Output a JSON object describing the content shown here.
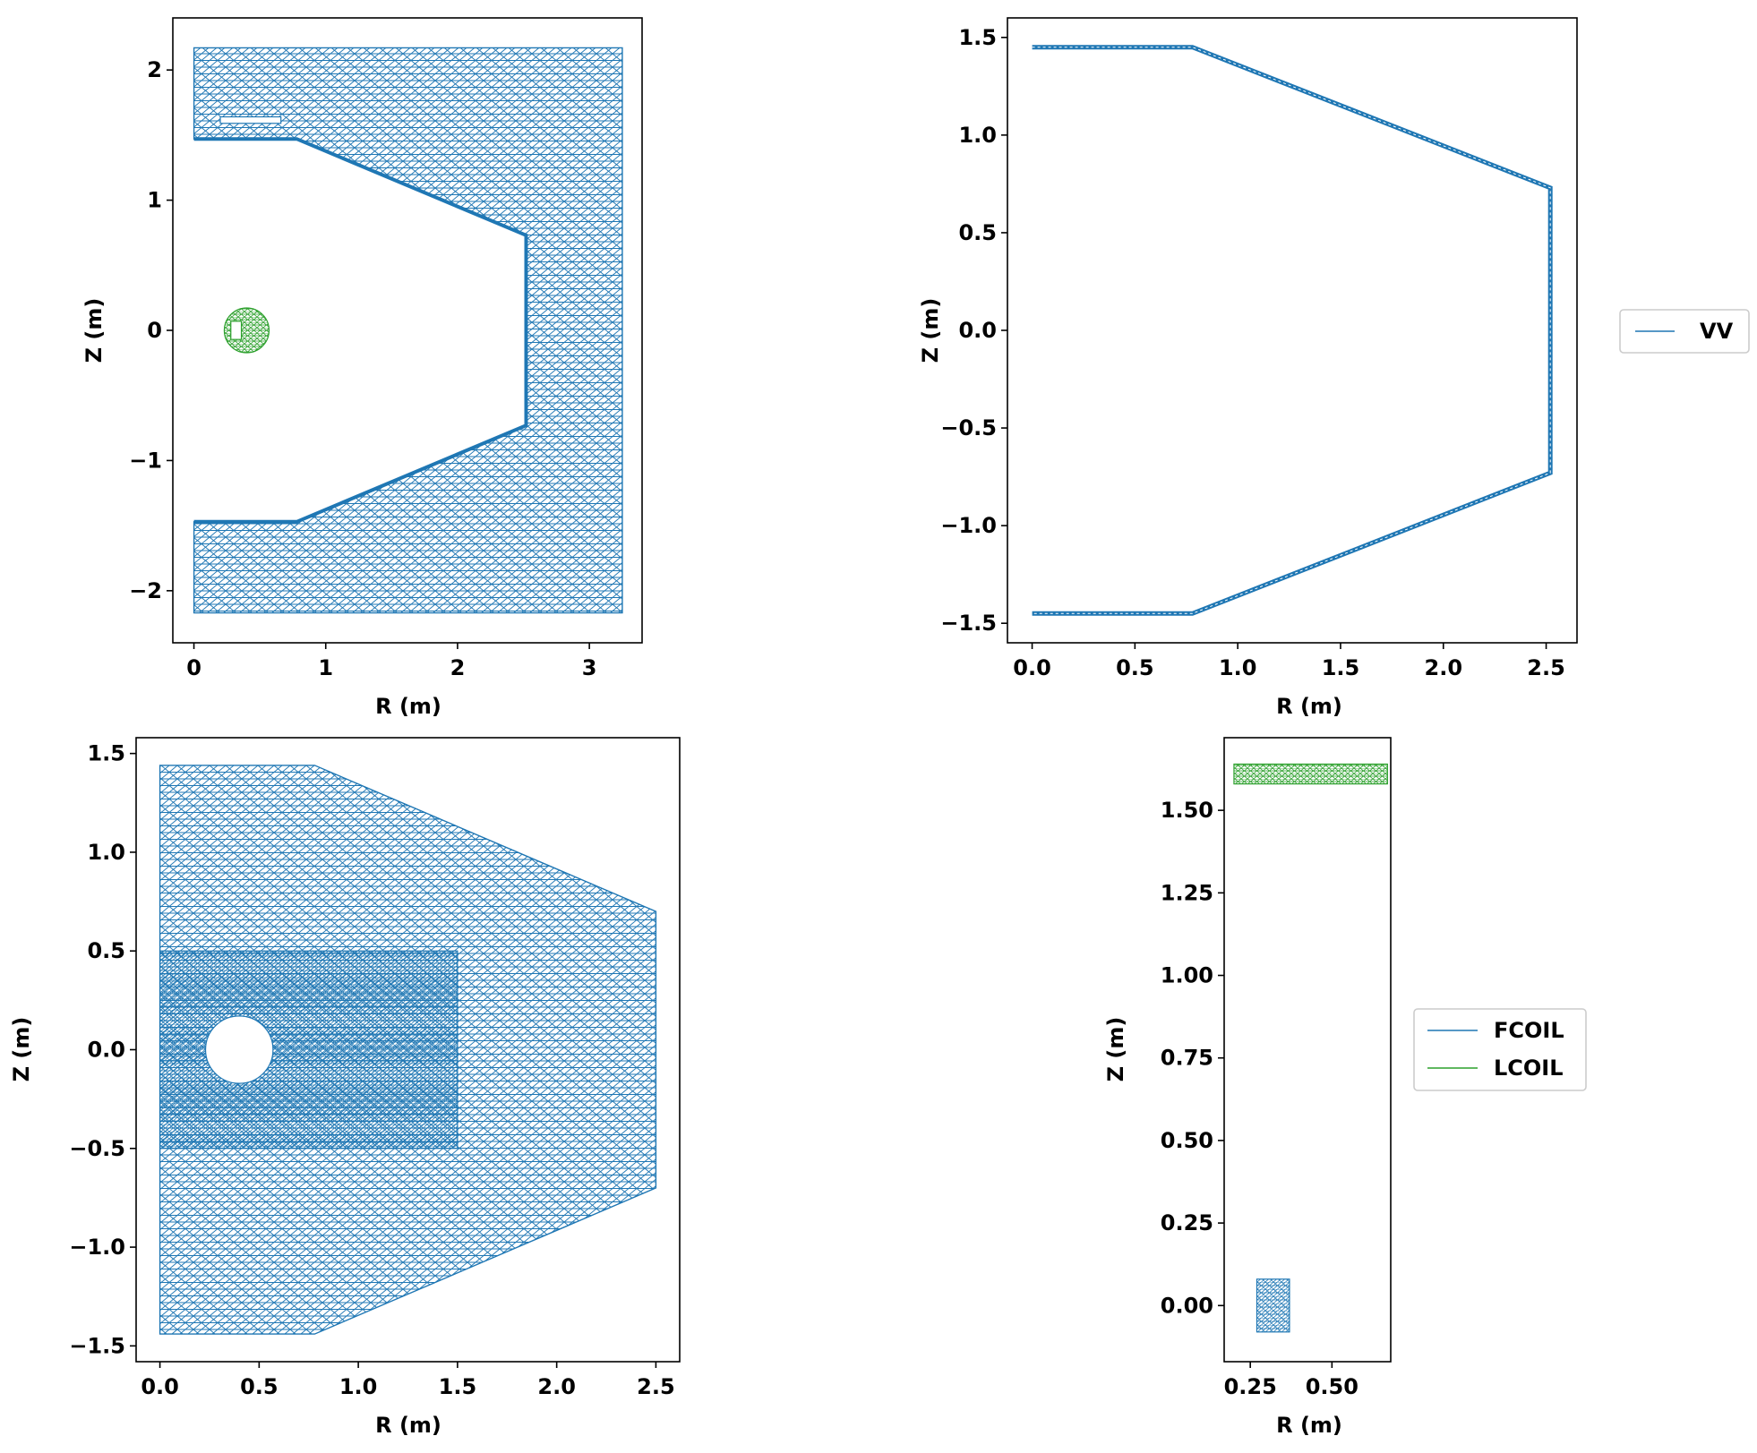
{
  "colors": {
    "blue": "#1f77b4",
    "green": "#2ca02c",
    "axes": "#000000",
    "legend_border": "#cccccc"
  },
  "chart_data": [
    {
      "type": "line",
      "subtype": "triangular-mesh",
      "panel": "top-left",
      "xlabel": "R (m)",
      "ylabel": "Z (m)",
      "xlim": [
        -0.16,
        3.4
      ],
      "ylim": [
        -2.4,
        2.4
      ],
      "xticks": [
        "0",
        "1",
        "2",
        "3"
      ],
      "xtick_values": [
        0,
        1,
        2,
        3
      ],
      "yticks": [
        "−2",
        "−1",
        "0",
        "1",
        "2"
      ],
      "ytick_values": [
        -2,
        -1,
        0,
        1,
        2
      ],
      "series": [
        {
          "color": "blue",
          "outline": [
            [
              0,
              2.17
            ],
            [
              3.25,
              2.17
            ],
            [
              3.25,
              -2.17
            ],
            [
              0,
              -2.17
            ],
            [
              0,
              -1.47
            ],
            [
              0.78,
              -1.47
            ],
            [
              2.52,
              -0.73
            ],
            [
              2.52,
              0.73
            ],
            [
              0.78,
              1.47
            ],
            [
              0,
              1.47
            ]
          ],
          "slot": [
            [
              0.2,
              1.59
            ],
            [
              0.66,
              1.64
            ]
          ]
        },
        {
          "color": "green",
          "circle_center": [
            0.4,
            0
          ],
          "circle_radius": 0.17,
          "inner_rect": [
            [
              0.28,
              -0.07
            ],
            [
              0.36,
              0.07
            ]
          ]
        }
      ],
      "grid": false
    },
    {
      "type": "line",
      "subtype": "triangular-mesh",
      "panel": "top-right",
      "xlabel": "R (m)",
      "ylabel": "Z (m)",
      "xlim": [
        -0.12,
        2.65
      ],
      "ylim": [
        -1.6,
        1.6
      ],
      "xticks": [
        "0.0",
        "0.5",
        "1.0",
        "1.5",
        "2.0",
        "2.5"
      ],
      "xtick_values": [
        0,
        0.5,
        1,
        1.5,
        2,
        2.5
      ],
      "yticks": [
        "−1.5",
        "−1.0",
        "−0.5",
        "0.0",
        "0.5",
        "1.0",
        "1.5"
      ],
      "ytick_values": [
        -1.5,
        -1,
        -0.5,
        0,
        0.5,
        1,
        1.5
      ],
      "series": [
        {
          "name": "VV",
          "color": "blue",
          "path": [
            [
              0,
              1.45
            ],
            [
              0.78,
              1.45
            ],
            [
              2.52,
              0.73
            ],
            [
              2.52,
              -0.73
            ],
            [
              0.78,
              -1.45
            ],
            [
              0,
              -1.45
            ]
          ]
        }
      ],
      "legend": {
        "placement": "right",
        "entries": [
          "VV"
        ]
      },
      "grid": false
    },
    {
      "type": "line",
      "subtype": "triangular-mesh",
      "panel": "bottom-left",
      "xlabel": "R (m)",
      "ylabel": "Z (m)",
      "xlim": [
        -0.12,
        2.62
      ],
      "ylim": [
        -1.58,
        1.58
      ],
      "xticks": [
        "0.0",
        "0.5",
        "1.0",
        "1.5",
        "2.0",
        "2.5"
      ],
      "xtick_values": [
        0,
        0.5,
        1,
        1.5,
        2,
        2.5
      ],
      "yticks": [
        "−1.5",
        "−1.0",
        "−0.5",
        "0.0",
        "0.5",
        "1.0",
        "1.5"
      ],
      "ytick_values": [
        -1.5,
        -1,
        -0.5,
        0,
        0.5,
        1,
        1.5
      ],
      "series": [
        {
          "color": "blue",
          "outline": [
            [
              0,
              1.44
            ],
            [
              0.78,
              1.44
            ],
            [
              2.5,
              0.7
            ],
            [
              2.5,
              -0.7
            ],
            [
              0.78,
              -1.44
            ],
            [
              0,
              -1.44
            ]
          ],
          "dense_region": [
            [
              0,
              -0.5
            ],
            [
              1.5,
              0.5
            ]
          ],
          "hole_center": [
            0.4,
            0
          ],
          "hole_radius": 0.17
        }
      ],
      "grid": false
    },
    {
      "type": "line",
      "subtype": "triangular-mesh",
      "panel": "bottom-right",
      "xlabel": "R (m)",
      "ylabel": "Z (m)",
      "xlim": [
        0.17,
        0.68
      ],
      "ylim": [
        -0.17,
        1.72
      ],
      "xticks": [
        "0.25",
        "0.50"
      ],
      "xtick_values": [
        0.25,
        0.5
      ],
      "yticks": [
        "0.00",
        "0.25",
        "0.50",
        "0.75",
        "1.00",
        "1.25",
        "1.50"
      ],
      "ytick_values": [
        0,
        0.25,
        0.5,
        0.75,
        1,
        1.25,
        1.5
      ],
      "series": [
        {
          "name": "FCOIL",
          "color": "blue",
          "rect": [
            [
              0.27,
              -0.08
            ],
            [
              0.37,
              0.08
            ]
          ]
        },
        {
          "name": "LCOIL",
          "color": "green",
          "rect": [
            [
              0.2,
              1.58
            ],
            [
              0.67,
              1.64
            ]
          ]
        }
      ],
      "legend": {
        "placement": "right",
        "entries": [
          "FCOIL",
          "LCOIL"
        ]
      },
      "grid": false
    }
  ]
}
